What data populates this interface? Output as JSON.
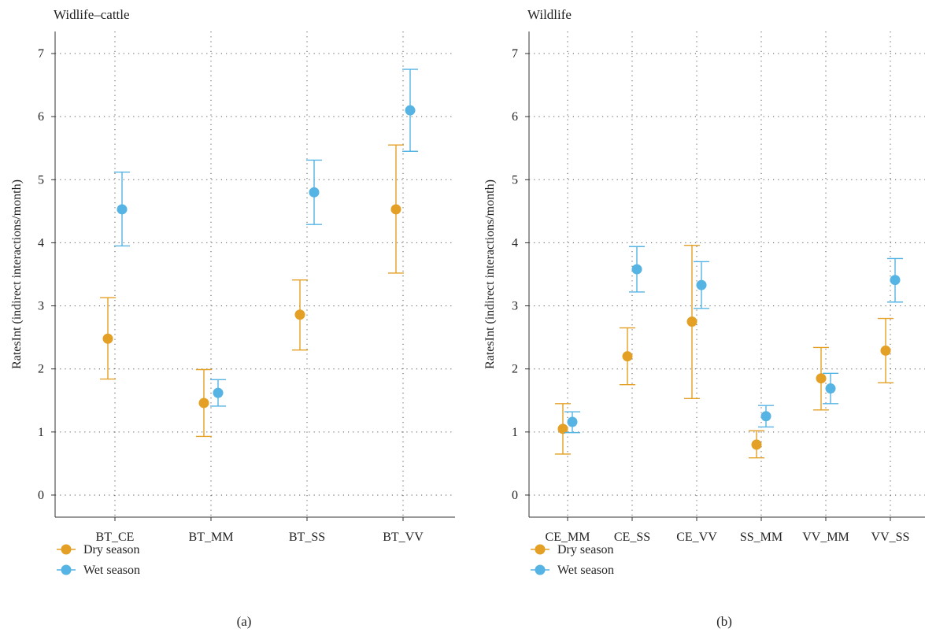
{
  "chart_data": [
    {
      "type": "scatter",
      "title": "Widlife–cattle",
      "subtitle": "(a)",
      "ylabel": "RatesInt (indirect interactions/month)",
      "xlabel": "",
      "categories": [
        "BT_CE",
        "BT_MM",
        "BT_SS",
        "BT_VV"
      ],
      "yticks": [
        0,
        1,
        2,
        3,
        4,
        5,
        6,
        7
      ],
      "ylim": [
        -0.35,
        7.35
      ],
      "grid": true,
      "legend_position": "bottom-left",
      "series": [
        {
          "name": "Dry season",
          "color": "#E4A024",
          "values": [
            2.48,
            1.46,
            2.86,
            4.53
          ],
          "lower": [
            1.84,
            0.93,
            2.3,
            3.52
          ],
          "upper": [
            3.13,
            1.99,
            3.41,
            5.55
          ]
        },
        {
          "name": "Wet season",
          "color": "#56B4E4",
          "values": [
            4.53,
            1.62,
            4.8,
            6.1
          ],
          "lower": [
            3.95,
            1.41,
            4.29,
            5.45
          ],
          "upper": [
            5.12,
            1.83,
            5.31,
            6.75
          ]
        }
      ]
    },
    {
      "type": "scatter",
      "title": "Wildlife",
      "subtitle": "(b)",
      "ylabel": "RatesInt (indirect interactions/month)",
      "xlabel": "",
      "categories": [
        "CE_MM",
        "CE_SS",
        "CE_VV",
        "SS_MM",
        "VV_MM",
        "VV_SS"
      ],
      "yticks": [
        0,
        1,
        2,
        3,
        4,
        5,
        6,
        7
      ],
      "ylim": [
        -0.35,
        7.35
      ],
      "grid": true,
      "legend_position": "bottom-left",
      "series": [
        {
          "name": "Dry season",
          "color": "#E4A024",
          "values": [
            1.05,
            2.2,
            2.75,
            0.8,
            1.85,
            2.29
          ],
          "lower": [
            0.65,
            1.75,
            1.53,
            0.59,
            1.35,
            1.78
          ],
          "upper": [
            1.45,
            2.65,
            3.96,
            1.02,
            2.34,
            2.8
          ]
        },
        {
          "name": "Wet season",
          "color": "#56B4E4",
          "values": [
            1.16,
            3.58,
            3.33,
            1.25,
            1.69,
            3.41
          ],
          "lower": [
            0.99,
            3.22,
            2.96,
            1.08,
            1.45,
            3.06
          ],
          "upper": [
            1.32,
            3.94,
            3.7,
            1.42,
            1.93,
            3.75
          ]
        }
      ]
    }
  ]
}
